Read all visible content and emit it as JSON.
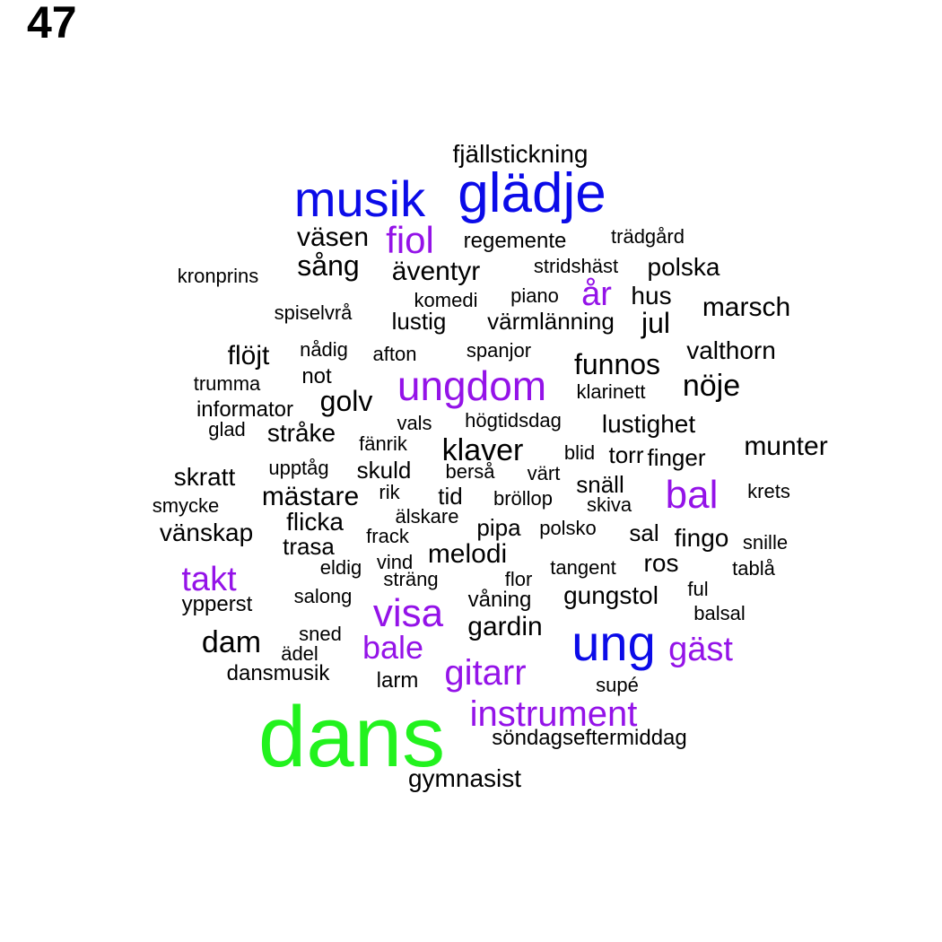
{
  "figure_number": "47",
  "colors": {
    "black": "#000000",
    "purple": "#9413e8",
    "blue": "#0b0be8",
    "green": "#22f21e"
  },
  "words": [
    {
      "text": "dans",
      "color": "green"
    },
    {
      "text": "glädje",
      "color": "blue"
    },
    {
      "text": "musik",
      "color": "blue"
    },
    {
      "text": "ung",
      "color": "blue"
    },
    {
      "text": "ungdom",
      "color": "purple"
    },
    {
      "text": "visa",
      "color": "purple"
    },
    {
      "text": "bal",
      "color": "purple"
    },
    {
      "text": "gitarr",
      "color": "purple"
    },
    {
      "text": "instrument",
      "color": "purple"
    },
    {
      "text": "gäst",
      "color": "purple"
    },
    {
      "text": "fiol",
      "color": "purple"
    },
    {
      "text": "takt",
      "color": "purple"
    },
    {
      "text": "bale",
      "color": "purple"
    },
    {
      "text": "år",
      "color": "purple"
    },
    {
      "text": "fjällstickning",
      "color": "black"
    },
    {
      "text": "väsen",
      "color": "black"
    },
    {
      "text": "regemente",
      "color": "black"
    },
    {
      "text": "trädgård",
      "color": "black"
    },
    {
      "text": "sång",
      "color": "black"
    },
    {
      "text": "äventyr",
      "color": "black"
    },
    {
      "text": "stridshäst",
      "color": "black"
    },
    {
      "text": "polska",
      "color": "black"
    },
    {
      "text": "kronprins",
      "color": "black"
    },
    {
      "text": "komedi",
      "color": "black"
    },
    {
      "text": "piano",
      "color": "black"
    },
    {
      "text": "hus",
      "color": "black"
    },
    {
      "text": "marsch",
      "color": "black"
    },
    {
      "text": "spiselvrå",
      "color": "black"
    },
    {
      "text": "lustig",
      "color": "black"
    },
    {
      "text": "värmlänning",
      "color": "black"
    },
    {
      "text": "jul",
      "color": "black"
    },
    {
      "text": "flöjt",
      "color": "black"
    },
    {
      "text": "nådig",
      "color": "black"
    },
    {
      "text": "afton",
      "color": "black"
    },
    {
      "text": "spanjor",
      "color": "black"
    },
    {
      "text": "funnos",
      "color": "black"
    },
    {
      "text": "valthorn",
      "color": "black"
    },
    {
      "text": "trumma",
      "color": "black"
    },
    {
      "text": "not",
      "color": "black"
    },
    {
      "text": "klarinett",
      "color": "black"
    },
    {
      "text": "nöje",
      "color": "black"
    },
    {
      "text": "golv",
      "color": "black"
    },
    {
      "text": "informator",
      "color": "black"
    },
    {
      "text": "vals",
      "color": "black"
    },
    {
      "text": "högtidsdag",
      "color": "black"
    },
    {
      "text": "lustighet",
      "color": "black"
    },
    {
      "text": "glad",
      "color": "black"
    },
    {
      "text": "stråke",
      "color": "black"
    },
    {
      "text": "fänrik",
      "color": "black"
    },
    {
      "text": "klaver",
      "color": "black"
    },
    {
      "text": "blid",
      "color": "black"
    },
    {
      "text": "torr",
      "color": "black"
    },
    {
      "text": "finger",
      "color": "black"
    },
    {
      "text": "munter",
      "color": "black"
    },
    {
      "text": "skratt",
      "color": "black"
    },
    {
      "text": "upptåg",
      "color": "black"
    },
    {
      "text": "skuld",
      "color": "black"
    },
    {
      "text": "berså",
      "color": "black"
    },
    {
      "text": "värt",
      "color": "black"
    },
    {
      "text": "snäll",
      "color": "black"
    },
    {
      "text": "krets",
      "color": "black"
    },
    {
      "text": "smycke",
      "color": "black"
    },
    {
      "text": "mästare",
      "color": "black"
    },
    {
      "text": "rik",
      "color": "black"
    },
    {
      "text": "tid",
      "color": "black"
    },
    {
      "text": "bröllop",
      "color": "black"
    },
    {
      "text": "skiva",
      "color": "black"
    },
    {
      "text": "vänskap",
      "color": "black"
    },
    {
      "text": "flicka",
      "color": "black"
    },
    {
      "text": "älskare",
      "color": "black"
    },
    {
      "text": "pipa",
      "color": "black"
    },
    {
      "text": "polsko",
      "color": "black"
    },
    {
      "text": "trasa",
      "color": "black"
    },
    {
      "text": "frack",
      "color": "black"
    },
    {
      "text": "sal",
      "color": "black"
    },
    {
      "text": "fingo",
      "color": "black"
    },
    {
      "text": "snille",
      "color": "black"
    },
    {
      "text": "eldig",
      "color": "black"
    },
    {
      "text": "vind",
      "color": "black"
    },
    {
      "text": "melodi",
      "color": "black"
    },
    {
      "text": "tangent",
      "color": "black"
    },
    {
      "text": "ros",
      "color": "black"
    },
    {
      "text": "tablå",
      "color": "black"
    },
    {
      "text": "sträng",
      "color": "black"
    },
    {
      "text": "flor",
      "color": "black"
    },
    {
      "text": "salong",
      "color": "black"
    },
    {
      "text": "våning",
      "color": "black"
    },
    {
      "text": "gungstol",
      "color": "black"
    },
    {
      "text": "ful",
      "color": "black"
    },
    {
      "text": "ypperst",
      "color": "black"
    },
    {
      "text": "balsal",
      "color": "black"
    },
    {
      "text": "gardin",
      "color": "black"
    },
    {
      "text": "sned",
      "color": "black"
    },
    {
      "text": "dam",
      "color": "black"
    },
    {
      "text": "ädel",
      "color": "black"
    },
    {
      "text": "dansmusik",
      "color": "black"
    },
    {
      "text": "larm",
      "color": "black"
    },
    {
      "text": "supé",
      "color": "black"
    },
    {
      "text": "söndagseftermiddag",
      "color": "black"
    },
    {
      "text": "gymnasist",
      "color": "black"
    }
  ]
}
